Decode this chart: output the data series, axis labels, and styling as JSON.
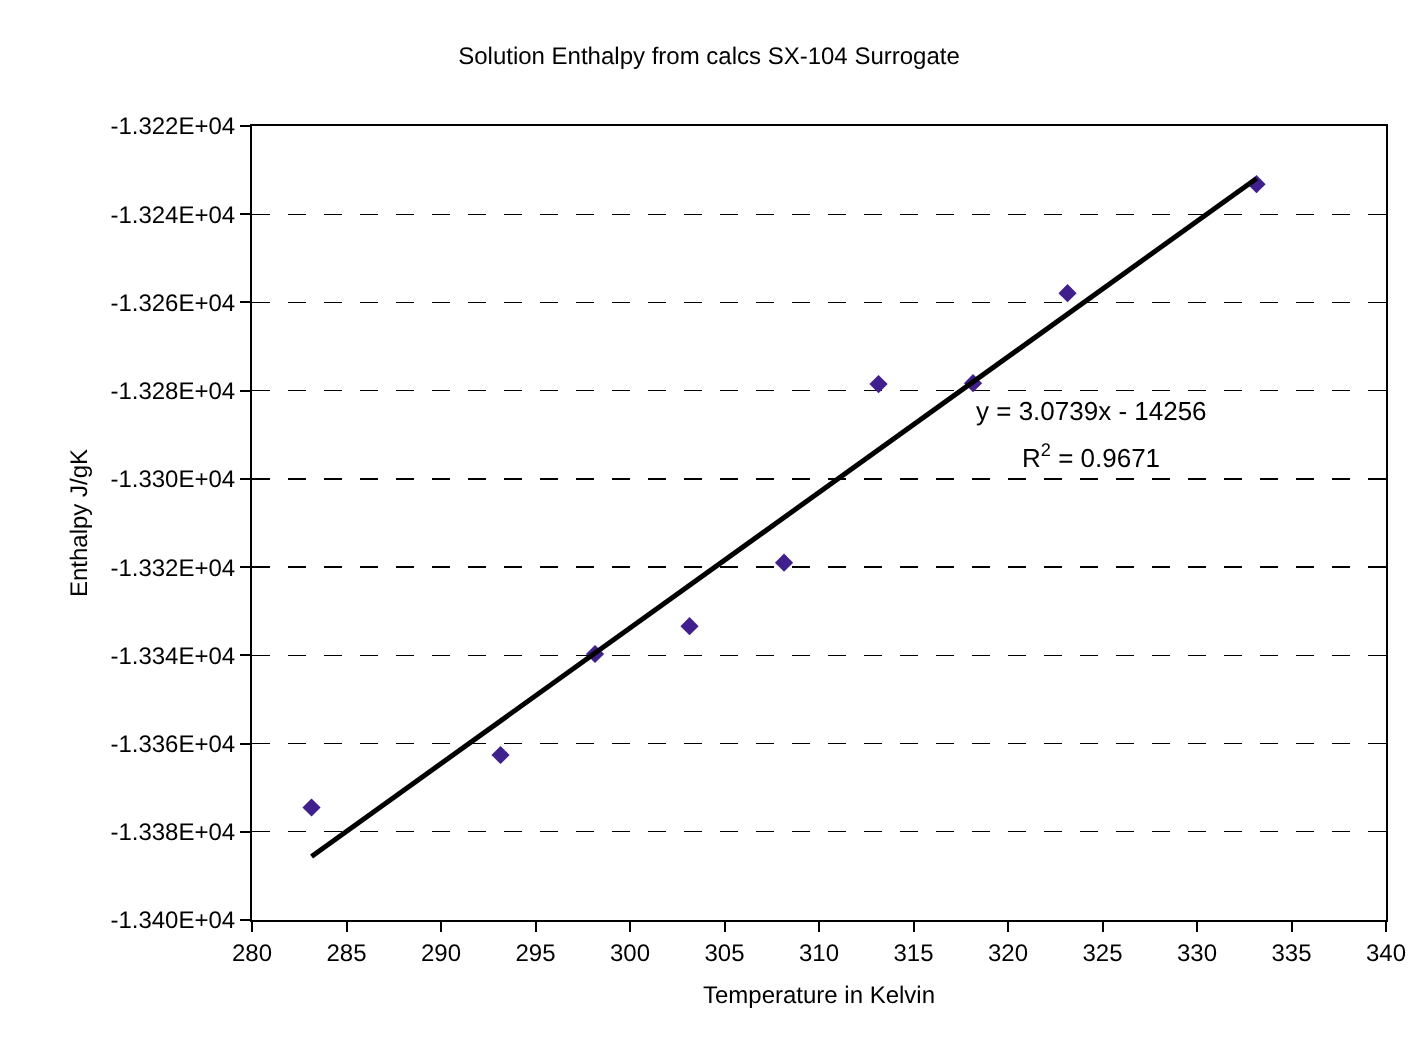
{
  "chart_data": {
    "type": "scatter",
    "title": "Solution Enthalpy from calcs SX-104 Surrogate",
    "xlabel": "Temperature in Kelvin",
    "ylabel": "Enthalpy J/gK",
    "x": [
      283.15,
      293.15,
      298.15,
      303.15,
      308.15,
      313.15,
      318.15,
      323.15,
      333.15
    ],
    "series": [
      {
        "color": "#40208c",
        "marker": "diamond",
        "values": [
          -13374.5,
          -13362.6,
          -13339.7,
          -13333.4,
          -13319,
          -13278.5,
          -13278.3,
          -13257.9,
          -13233.2
        ]
      },
      {
        "type": "line",
        "marker": "none",
        "color": "#000000",
        "x": [
          283.15,
          333.15
        ],
        "values": [
          -13385.6,
          -13231.9
        ]
      }
    ],
    "grid": "y",
    "xlim": [
      280,
      340
    ],
    "xticks": [
      280,
      285,
      290,
      295,
      300,
      305,
      310,
      315,
      320,
      325,
      330,
      335,
      340
    ],
    "ylim": [
      -13400,
      -13220
    ],
    "yticks": [
      {
        "value": -13400,
        "label": "-1.340E+04"
      },
      {
        "value": -13380,
        "label": "-1.338E+04"
      },
      {
        "value": -13360,
        "label": "-1.336E+04"
      },
      {
        "value": -13340,
        "label": "-1.334E+04"
      },
      {
        "value": -13320,
        "label": "-1.332E+04"
      },
      {
        "value": -13300,
        "label": "-1.330E+04"
      },
      {
        "value": -13280,
        "label": "-1.328E+04"
      },
      {
        "value": -13260,
        "label": "-1.326E+04"
      },
      {
        "value": -13240,
        "label": "-1.324E+04"
      },
      {
        "value": -13220,
        "label": "-1.322E+04"
      }
    ],
    "annotations": [
      "y = 3.0739x - 14256",
      "R$^{2}$ = 0.9671"
    ]
  }
}
